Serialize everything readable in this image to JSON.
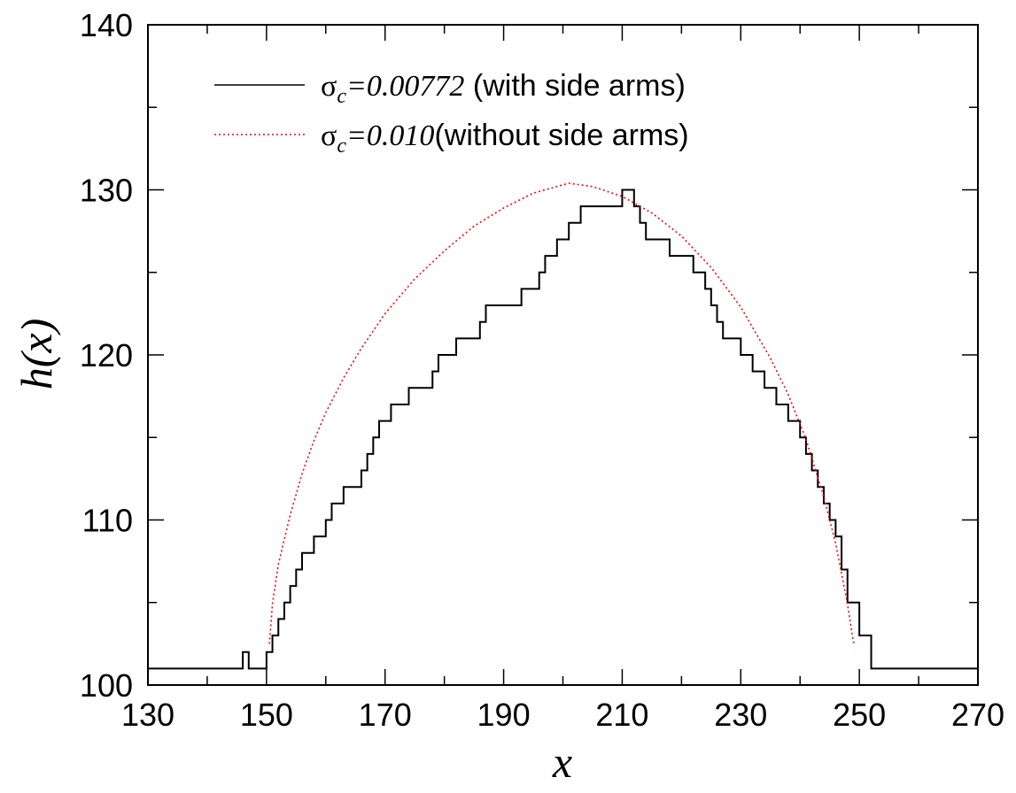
{
  "chart_data": {
    "type": "line",
    "xlabel": "x",
    "ylabel": "h(x)",
    "xlim": [
      130,
      270
    ],
    "ylim": [
      100,
      140
    ],
    "xticks": [
      130,
      150,
      170,
      190,
      210,
      230,
      250,
      270
    ],
    "yticks": [
      100,
      110,
      120,
      130,
      140
    ],
    "grid": false,
    "legend_position": "top-left",
    "series": [
      {
        "name": "with side arms",
        "legend_symbol": "σ",
        "legend_subscript": "c",
        "legend_value": "=0.00772",
        "legend_suffix": " (with side arms)",
        "color": "#000000",
        "style": "solid-step",
        "x": [
          130,
          146,
          146,
          147,
          147,
          150,
          150,
          151,
          151,
          152,
          152,
          153,
          153,
          154,
          154,
          155,
          155,
          156,
          156,
          158,
          158,
          160,
          160,
          161,
          161,
          163,
          163,
          166,
          166,
          167,
          167,
          168,
          168,
          169,
          169,
          171,
          171,
          174,
          174,
          178,
          178,
          179,
          179,
          182,
          182,
          186,
          186,
          187,
          187,
          193,
          193,
          196,
          196,
          197,
          197,
          199,
          199,
          201,
          201,
          203,
          203,
          210,
          210,
          212,
          212,
          213,
          213,
          214,
          214,
          218,
          218,
          222,
          222,
          224,
          224,
          225,
          225,
          226,
          226,
          227,
          227,
          230,
          230,
          232,
          232,
          234,
          234,
          236,
          236,
          238,
          238,
          240,
          240,
          241,
          241,
          242,
          242,
          243,
          243,
          244,
          244,
          245,
          245,
          246,
          246,
          247,
          247,
          248,
          248,
          250,
          250,
          252,
          252,
          270
        ],
        "y": [
          101,
          101,
          102,
          102,
          101,
          101,
          102,
          102,
          103,
          103,
          104,
          104,
          105,
          105,
          106,
          106,
          107,
          107,
          108,
          108,
          109,
          109,
          110,
          110,
          111,
          111,
          112,
          112,
          113,
          113,
          114,
          114,
          115,
          115,
          116,
          116,
          117,
          117,
          118,
          118,
          119,
          119,
          120,
          120,
          121,
          121,
          122,
          122,
          123,
          123,
          124,
          124,
          125,
          125,
          126,
          126,
          127,
          127,
          128,
          128,
          129,
          129,
          130,
          130,
          129,
          129,
          128,
          128,
          127,
          127,
          126,
          126,
          125,
          125,
          124,
          124,
          123,
          123,
          122,
          122,
          121,
          121,
          120,
          120,
          119,
          119,
          118,
          118,
          117,
          117,
          116,
          116,
          115,
          115,
          114,
          114,
          113,
          113,
          112,
          112,
          111,
          111,
          110,
          110,
          109,
          109,
          107,
          107,
          105,
          105,
          103,
          103,
          101,
          101
        ]
      },
      {
        "name": "without side arms",
        "legend_symbol": "σ",
        "legend_subscript": "c",
        "legend_value": "=0.010",
        "legend_suffix": "(without side arms)",
        "color": "#ff0000",
        "style": "dotted",
        "x": [
          150.5,
          151,
          152,
          154,
          156,
          158,
          160,
          163,
          166,
          170,
          175,
          180,
          185,
          190,
          195,
          200,
          201,
          205,
          210,
          215,
          220,
          225,
          230,
          235,
          238,
          241,
          244,
          246,
          248,
          249,
          249.5
        ],
        "y": [
          102.5,
          104.9,
          107.3,
          110.3,
          112.8,
          114.8,
          116.5,
          118.6,
          120.4,
          122.5,
          124.6,
          126.3,
          127.8,
          128.9,
          129.8,
          130.3,
          130.4,
          130.2,
          129.6,
          128.6,
          127.2,
          125.3,
          122.9,
          119.8,
          117.6,
          114.9,
          111.4,
          108.6,
          104.9,
          102.6,
          102.5
        ]
      }
    ]
  }
}
